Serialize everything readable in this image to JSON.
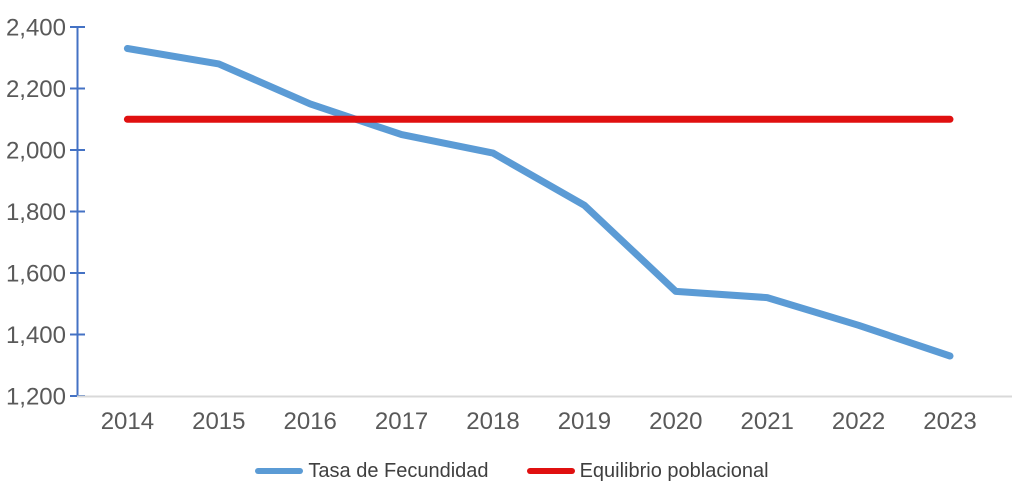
{
  "chart_data": {
    "type": "line",
    "title": "",
    "xlabel": "",
    "ylabel": "",
    "x": [
      2014,
      2015,
      2016,
      2017,
      2018,
      2019,
      2020,
      2021,
      2022,
      2023
    ],
    "series": [
      {
        "name": "Tasa de Fecundidad",
        "color": "#5B9BD5",
        "stroke_width": 7,
        "values": [
          2330,
          2280,
          2150,
          2050,
          1990,
          1820,
          1540,
          1520,
          1430,
          1330
        ]
      },
      {
        "name": "Equilibrio poblacional",
        "color": "#E01010",
        "stroke_width": 7,
        "values": [
          2100,
          2100,
          2100,
          2100,
          2100,
          2100,
          2100,
          2100,
          2100,
          2100
        ]
      }
    ],
    "ylim": [
      1200,
      2400
    ],
    "ytick_step": 200,
    "ytick_labels": [
      "1,200",
      "1,400",
      "1,600",
      "1,800",
      "2,000",
      "2,200",
      "2,400"
    ],
    "grid": false,
    "legend_position": "bottom",
    "colors": {
      "y_axis": "#4472C4",
      "x_axis_line": "#D9D9D9",
      "tick_label": "#595959",
      "legend_text": "#3F3F3F",
      "background": "#FFFFFF"
    }
  }
}
